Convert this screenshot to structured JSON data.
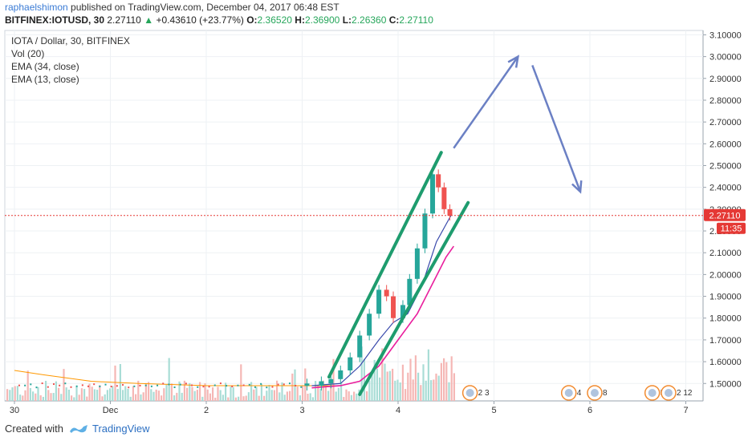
{
  "header": {
    "author": "raphaelshimon",
    "published": " published on TradingView.com, December 04, 2017 06:48 EST"
  },
  "symbol_line": {
    "symbol": "BITFINEX:IOTUSD, 30",
    "last": "2.27110",
    "change": "+0.43610 (+23.77%)",
    "o_label": "O:",
    "o": "2.36520",
    "h_label": "H:",
    "h": "2.36900",
    "l_label": "L:",
    "l": "2.26360",
    "c_label": "C:",
    "c": "2.27110"
  },
  "legend": [
    "IOTA / Dollar, 30, BITFINEX",
    "Vol (20)",
    "EMA (34, close)",
    "EMA (13, close)"
  ],
  "footer": {
    "created_with": "Created with",
    "brand": "TradingView"
  },
  "colors": {
    "up": "#26a69a",
    "down": "#ef5350",
    "ema34": "#ff9800",
    "ema13": "#3949ab",
    "ema_extra": "#e91e9e",
    "channel": "#1e9c6e",
    "arrow": "#6b80c4",
    "price_line": "#e53935"
  },
  "chart_data": {
    "type": "candlestick",
    "symbol": "IOTA / Dollar, 30, BITFINEX",
    "ylim": [
      1.42,
      3.12
    ],
    "y_ticks": [
      "1.50000",
      "1.60000",
      "1.70000",
      "1.80000",
      "1.90000",
      "2.00000",
      "2.10000",
      "2.20000",
      "2.30000",
      "2.40000",
      "2.50000",
      "2.60000",
      "2.70000",
      "2.80000",
      "2.90000",
      "3.00000",
      "3.10000"
    ],
    "x_ticks": [
      "30",
      "Dec",
      "2",
      "3",
      "4",
      "5",
      "6",
      "7"
    ],
    "last_price_label": "2.27110",
    "countdown_label": "11:35",
    "last_price": 2.2711,
    "event_labels": [
      "2 3",
      "4",
      "8",
      "5",
      "2 12"
    ],
    "candles": [
      {
        "x": 3.05,
        "o": 1.49,
        "c": 1.5
      },
      {
        "x": 3.2,
        "o": 1.49,
        "c": 1.51
      },
      {
        "x": 3.3,
        "o": 1.5,
        "c": 1.52
      },
      {
        "x": 3.4,
        "o": 1.52,
        "c": 1.56
      },
      {
        "x": 3.5,
        "o": 1.56,
        "c": 1.62
      },
      {
        "x": 3.6,
        "o": 1.62,
        "c": 1.72
      },
      {
        "x": 3.7,
        "o": 1.72,
        "c": 1.82
      },
      {
        "x": 3.8,
        "o": 1.82,
        "c": 1.93
      },
      {
        "x": 3.88,
        "o": 1.93,
        "c": 1.9
      },
      {
        "x": 3.95,
        "o": 1.9,
        "c": 1.8
      },
      {
        "x": 4.05,
        "o": 1.8,
        "c": 1.86
      },
      {
        "x": 4.12,
        "o": 1.86,
        "c": 1.98
      },
      {
        "x": 4.2,
        "o": 1.98,
        "c": 2.12
      },
      {
        "x": 4.28,
        "o": 2.12,
        "c": 2.28
      },
      {
        "x": 4.36,
        "o": 2.28,
        "c": 2.46
      },
      {
        "x": 4.42,
        "o": 2.46,
        "c": 2.4
      },
      {
        "x": 4.48,
        "o": 2.4,
        "c": 2.3
      },
      {
        "x": 4.54,
        "o": 2.3,
        "c": 2.27
      }
    ],
    "ema13": [
      [
        3.1,
        1.49
      ],
      [
        3.4,
        1.5
      ],
      [
        3.6,
        1.58
      ],
      [
        3.8,
        1.7
      ],
      [
        3.95,
        1.78
      ],
      [
        4.1,
        1.82
      ],
      [
        4.25,
        1.95
      ],
      [
        4.4,
        2.15
      ],
      [
        4.55,
        2.27
      ]
    ],
    "ema34": [
      [
        3.1,
        1.48
      ],
      [
        3.4,
        1.49
      ],
      [
        3.6,
        1.51
      ],
      [
        3.8,
        1.58
      ],
      [
        4.0,
        1.7
      ],
      [
        4.2,
        1.82
      ],
      [
        4.35,
        1.95
      ],
      [
        4.5,
        2.08
      ],
      [
        4.58,
        2.13
      ]
    ],
    "annotations": [
      {
        "type": "channel_line",
        "from": [
          3.28,
          1.53
        ],
        "to": [
          4.45,
          2.56
        ]
      },
      {
        "type": "channel_line",
        "from": [
          3.6,
          1.45
        ],
        "to": [
          4.73,
          2.33
        ]
      },
      {
        "type": "arrow",
        "from": [
          4.58,
          2.58
        ],
        "to": [
          5.25,
          3.0
        ]
      },
      {
        "type": "arrow",
        "from": [
          5.4,
          2.96
        ],
        "to": [
          5.9,
          2.38
        ]
      }
    ]
  }
}
